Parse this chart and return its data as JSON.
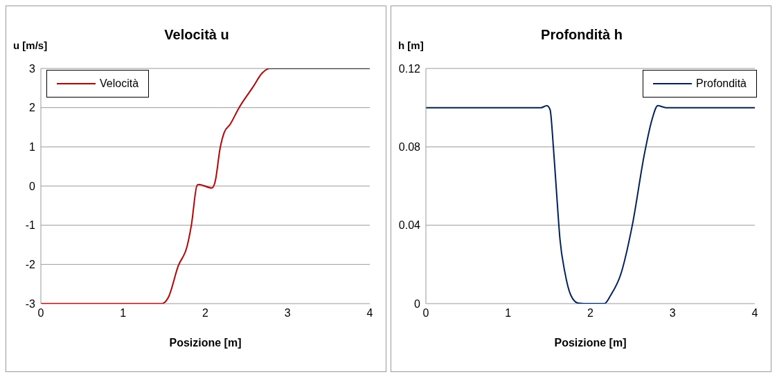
{
  "chart_data": [
    {
      "type": "line",
      "title": "Velocità u",
      "ylabel": "u [m/s]",
      "xlabel": "Posizione [m]",
      "xlim": [
        0,
        4
      ],
      "xticks": [
        0,
        1,
        2,
        3,
        4
      ],
      "ylim": [
        -3,
        3
      ],
      "yticks": [
        -3,
        -2,
        -1,
        0,
        1,
        2,
        3
      ],
      "grid": "y",
      "legend": "top left",
      "series": [
        {
          "name": "Velocità",
          "color": "#c00000",
          "x": [
            0,
            1.0,
            1.4,
            1.47,
            1.55,
            1.67,
            1.78,
            1.83,
            1.9,
            1.92,
            2.08,
            2.12,
            2.18,
            2.23,
            2.3,
            2.41,
            2.58,
            2.69,
            2.78,
            3.2,
            4
          ],
          "values": [
            -3,
            -3,
            -3,
            -3,
            -2.84,
            -2.04,
            -1.52,
            -1.0,
            0.02,
            0.04,
            -0.05,
            0.12,
            0.97,
            1.37,
            1.57,
            2.0,
            2.53,
            2.88,
            3.0,
            3,
            3
          ]
        }
      ]
    },
    {
      "type": "line",
      "title": "Profondità h",
      "ylabel": "h [m]",
      "xlabel": "Posizione [m]",
      "xlim": [
        0,
        4
      ],
      "xticks": [
        0,
        1,
        2,
        3,
        4
      ],
      "ylim": [
        0,
        0.12
      ],
      "yticks": [
        0,
        0.04,
        0.08,
        0.12
      ],
      "grid": "y",
      "legend": "top right",
      "series": [
        {
          "name": "Profondità",
          "color": "#002060",
          "x": [
            0,
            1.0,
            1.4,
            1.47,
            1.51,
            1.55,
            1.59,
            1.63,
            1.69,
            1.76,
            1.85,
            1.99,
            2.17,
            2.25,
            2.37,
            2.51,
            2.66,
            2.75,
            2.82,
            2.92,
            3.5,
            4
          ],
          "values": [
            0.1,
            0.1,
            0.1,
            0.101,
            0.099,
            0.08,
            0.056,
            0.033,
            0.016,
            0.0045,
            0.0003,
            0,
            0,
            0.0045,
            0.015,
            0.04,
            0.077,
            0.094,
            0.101,
            0.1,
            0.1,
            0.1
          ]
        }
      ]
    }
  ]
}
